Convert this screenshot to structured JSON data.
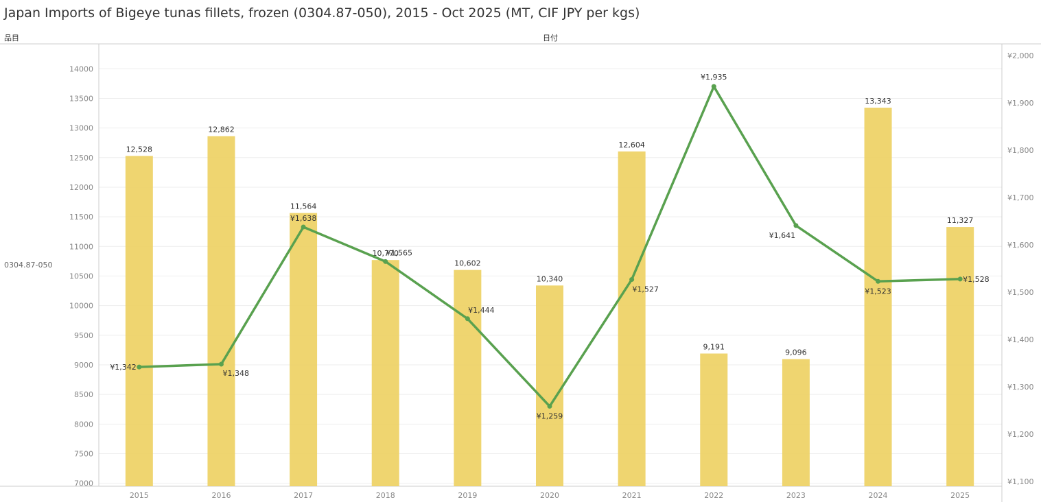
{
  "title": "Japan Imports of Bigeye tunas fillets, frozen (0304.87-050), 2015 - Oct 2025 (MT, CIF JPY per kgs)",
  "header": {
    "left_label": "品目",
    "center_label": "日付"
  },
  "row_label": "0304.87-050",
  "colors": {
    "bar": "#EDD060",
    "line": "#59A14F",
    "grid": "#EEEEEE",
    "axis": "#CCCCCC"
  },
  "chart_data": {
    "type": "bar",
    "title": "Japan Imports of Bigeye tunas fillets, frozen (0304.87-050), 2015 - Oct 2025 (MT, CIF JPY per kgs)",
    "categories": [
      "2015",
      "2016",
      "2017",
      "2018",
      "2019",
      "2020",
      "2021",
      "2022",
      "2023",
      "2024",
      "2025"
    ],
    "series": [
      {
        "chart": "bar",
        "axis": "left",
        "values": [
          12528,
          12862,
          11564,
          10770,
          10602,
          10340,
          12604,
          9191,
          9096,
          13343,
          11327
        ],
        "labels": [
          "12,528",
          "12,862",
          "11,564",
          "10,770",
          "10,602",
          "10,340",
          "12,604",
          "9,191",
          "9,096",
          "13,343",
          "11,327"
        ]
      },
      {
        "chart": "line",
        "axis": "right",
        "values": [
          1342,
          1348,
          1638,
          1565,
          1444,
          1259,
          1527,
          1935,
          1641,
          1523,
          1528
        ],
        "labels": [
          "¥1,342",
          "¥1,348",
          "¥1,638",
          "¥1,565",
          "¥1,444",
          "¥1,259",
          "¥1,527",
          "¥1,935",
          "¥1,641",
          "¥1,523",
          "¥1,528"
        ]
      }
    ],
    "y_left": {
      "min": 6950,
      "max": 14420,
      "ticks": [
        7000,
        7500,
        8000,
        8500,
        9000,
        9500,
        10000,
        10500,
        11000,
        11500,
        12000,
        12500,
        13000,
        13500,
        14000
      ],
      "tick_labels": [
        "7000",
        "7500",
        "8000",
        "8500",
        "9000",
        "9500",
        "10000",
        "10500",
        "11000",
        "11500",
        "12000",
        "12500",
        "13000",
        "13500",
        "14000"
      ]
    },
    "y_right": {
      "min": 1090,
      "max": 2025,
      "ticks": [
        1100,
        1200,
        1300,
        1400,
        1500,
        1600,
        1700,
        1800,
        1900,
        2000
      ],
      "tick_labels": [
        "¥1,100",
        "¥1,200",
        "¥1,300",
        "¥1,400",
        "¥1,500",
        "¥1,600",
        "¥1,700",
        "¥1,800",
        "¥1,900",
        "¥2,000"
      ]
    },
    "grid": true,
    "legend": "none"
  }
}
